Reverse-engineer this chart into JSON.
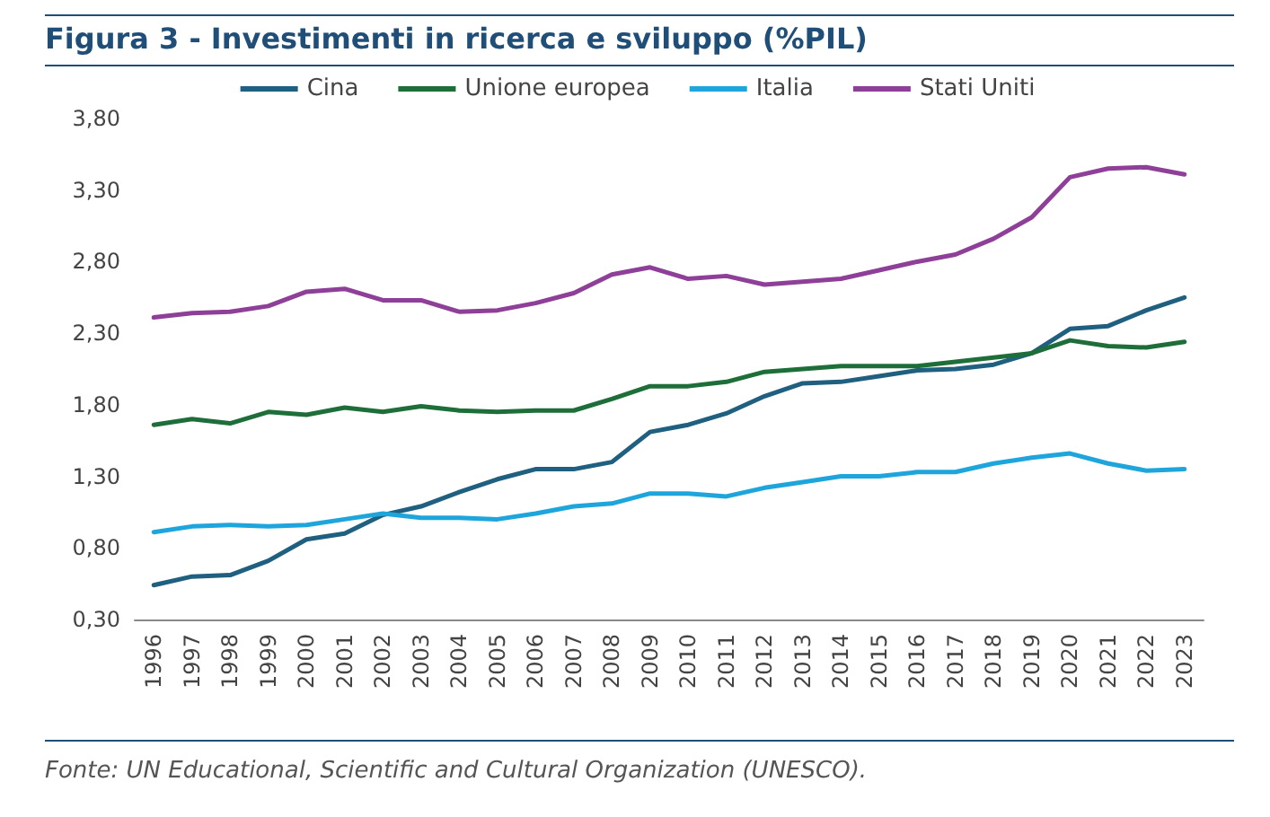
{
  "chart_data": {
    "type": "line",
    "title": "Figura 3 - Investimenti in ricerca e sviluppo (%PIL)",
    "categories": [
      "1996",
      "1997",
      "1998",
      "1999",
      "2000",
      "2001",
      "2002",
      "2003",
      "2004",
      "2005",
      "2006",
      "2007",
      "2008",
      "2009",
      "2010",
      "2011",
      "2012",
      "2013",
      "2014",
      "2015",
      "2016",
      "2017",
      "2018",
      "2019",
      "2020",
      "2021",
      "2022",
      "2023"
    ],
    "series": [
      {
        "name": "Cina",
        "color": "#1f5f7f",
        "values": [
          0.54,
          0.6,
          0.61,
          0.71,
          0.86,
          0.9,
          1.03,
          1.09,
          1.19,
          1.28,
          1.35,
          1.35,
          1.4,
          1.61,
          1.66,
          1.74,
          1.86,
          1.95,
          1.96,
          2.0,
          2.04,
          2.05,
          2.08,
          2.16,
          2.33,
          2.35,
          2.46,
          2.55
        ]
      },
      {
        "name": "Unione europea",
        "color": "#1e6e3a",
        "values": [
          1.66,
          1.7,
          1.67,
          1.75,
          1.73,
          1.78,
          1.75,
          1.79,
          1.76,
          1.75,
          1.76,
          1.76,
          1.84,
          1.93,
          1.93,
          1.96,
          2.03,
          2.05,
          2.07,
          2.07,
          2.07,
          2.1,
          2.13,
          2.16,
          2.25,
          2.21,
          2.2,
          2.24
        ]
      },
      {
        "name": "Italia",
        "color": "#1ea6dc",
        "values": [
          0.91,
          0.95,
          0.96,
          0.95,
          0.96,
          1.0,
          1.04,
          1.01,
          1.01,
          1.0,
          1.04,
          1.09,
          1.11,
          1.18,
          1.18,
          1.16,
          1.22,
          1.26,
          1.3,
          1.3,
          1.33,
          1.33,
          1.39,
          1.43,
          1.46,
          1.39,
          1.34,
          1.35
        ]
      },
      {
        "name": "Stati Uniti",
        "color": "#8e3f98",
        "values": [
          2.41,
          2.44,
          2.45,
          2.49,
          2.59,
          2.61,
          2.53,
          2.53,
          2.45,
          2.46,
          2.51,
          2.58,
          2.71,
          2.76,
          2.68,
          2.7,
          2.64,
          2.66,
          2.68,
          2.74,
          2.8,
          2.85,
          2.96,
          3.11,
          3.39,
          3.45,
          3.46,
          3.41
        ]
      }
    ],
    "ylim": [
      0.3,
      3.8
    ],
    "yticks": [
      {
        "value": 0.3,
        "label": "0,30"
      },
      {
        "value": 0.8,
        "label": "0,80"
      },
      {
        "value": 1.3,
        "label": "1,30"
      },
      {
        "value": 1.8,
        "label": "1,80"
      },
      {
        "value": 2.3,
        "label": "2,30"
      },
      {
        "value": 2.8,
        "label": "2,80"
      },
      {
        "value": 3.3,
        "label": "3,30"
      },
      {
        "value": 3.8,
        "label": "3,80"
      }
    ],
    "grid": false,
    "legend": "top",
    "marker": "none",
    "line_style": "solid",
    "annotations": [
      "Fonte: UN Educational, Scientific and Cultural Organization (UNESCO)."
    ]
  }
}
